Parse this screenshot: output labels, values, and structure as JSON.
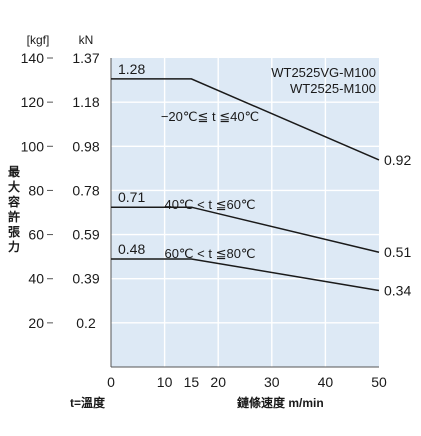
{
  "chart_data": {
    "type": "line",
    "y_units": {
      "kgf": "[kgf]",
      "kn": "kN"
    },
    "ylabel": "最\n大\n容\n許\n張\n力",
    "xlabel": "鏈條速度 m/min",
    "x_note": "t=溫度",
    "xlim": [
      0,
      50
    ],
    "ylim_kgf": [
      0,
      140
    ],
    "x_ticks": [
      "0",
      "10",
      "15",
      "20",
      "30",
      "40",
      "50"
    ],
    "x_tick_values": [
      0,
      10,
      15,
      20,
      30,
      40,
      50
    ],
    "y_ticks": [
      {
        "kgf": "140",
        "kn": "1.37",
        "value": 140
      },
      {
        "kgf": "120",
        "kn": "1.18",
        "value": 120
      },
      {
        "kgf": "100",
        "kn": "0.98",
        "value": 100
      },
      {
        "kgf": "80",
        "kn": "0.78",
        "value": 80
      },
      {
        "kgf": "60",
        "kn": "0.59",
        "value": 60
      },
      {
        "kgf": "40",
        "kn": "0.39",
        "value": 40
      },
      {
        "kgf": "20",
        "kn": "0.2",
        "value": 20
      }
    ],
    "model_labels": [
      "WT2525VG-M100",
      "WT2525-M100"
    ],
    "series": [
      {
        "name": "−20℃≦ t ≦40℃",
        "x": [
          0,
          15,
          50
        ],
        "y_kn": [
          1.28,
          1.28,
          0.92
        ],
        "start_label": "1.28",
        "end_label": "0.92"
      },
      {
        "name": "40℃ < t ≦60℃",
        "x": [
          0,
          15,
          50
        ],
        "y_kn": [
          0.71,
          0.71,
          0.51
        ],
        "start_label": "0.71",
        "end_label": "0.51"
      },
      {
        "name": "60℃ < t ≦80℃",
        "x": [
          0,
          15,
          50
        ],
        "y_kn": [
          0.48,
          0.48,
          0.34
        ],
        "start_label": "0.48",
        "end_label": "0.34"
      }
    ],
    "colors": {
      "plot_bg": "#dde9f5",
      "grid": "#ffffff",
      "line": "#1a1a1a"
    }
  }
}
